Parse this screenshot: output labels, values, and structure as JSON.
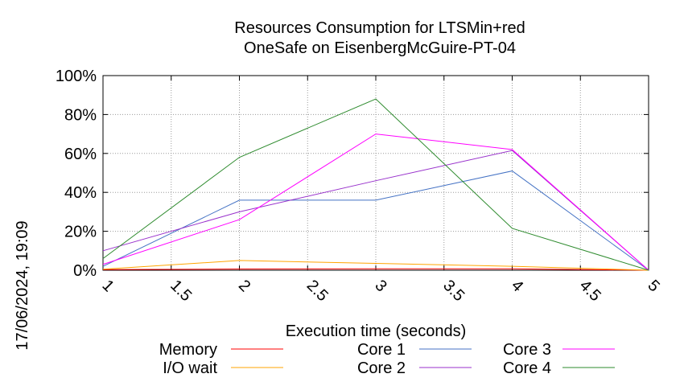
{
  "chart_data": {
    "type": "line",
    "title_line1": "Resources Consumption for LTSMin+red",
    "title_line2": "OneSafe on EisenbergMcGuire-PT-04",
    "xlabel": "Execution time (seconds)",
    "ylabel": "",
    "timestamp": "17/06/2024, 19:09",
    "xlim": [
      1,
      5
    ],
    "ylim": [
      0,
      100
    ],
    "x_ticks": [
      1,
      1.5,
      2,
      2.5,
      3,
      3.5,
      4,
      4.5,
      5
    ],
    "x_tick_labels": [
      "1",
      "1.5",
      "2",
      "2.5",
      "3",
      "3.5",
      "4",
      "4.5",
      "5"
    ],
    "y_ticks": [
      0,
      20,
      40,
      60,
      80,
      100
    ],
    "y_tick_labels": [
      "0%",
      "20%",
      "40%",
      "60%",
      "80%",
      "100%"
    ],
    "grid": true,
    "legend_placement": "bottom",
    "x": [
      1,
      2,
      3,
      4,
      5
    ],
    "series": [
      {
        "name": "Memory",
        "color": "#ff0000",
        "values": [
          0.3,
          0.6,
          0.7,
          0.7,
          0
        ]
      },
      {
        "name": "I/O wait",
        "color": "#ffa500",
        "values": [
          0.5,
          5,
          3.5,
          2,
          0
        ]
      },
      {
        "name": "Core 1",
        "color": "#4472c4",
        "values": [
          2,
          36,
          36,
          51,
          0
        ]
      },
      {
        "name": "Core 2",
        "color": "#9932cc",
        "values": [
          10,
          30,
          46,
          61.5,
          0
        ]
      },
      {
        "name": "Core 3",
        "color": "#ff00ff",
        "values": [
          3,
          26,
          70,
          62,
          0
        ]
      },
      {
        "name": "Core 4",
        "color": "#2e8b2e",
        "values": [
          6,
          58,
          88,
          21.5,
          0
        ]
      }
    ]
  }
}
